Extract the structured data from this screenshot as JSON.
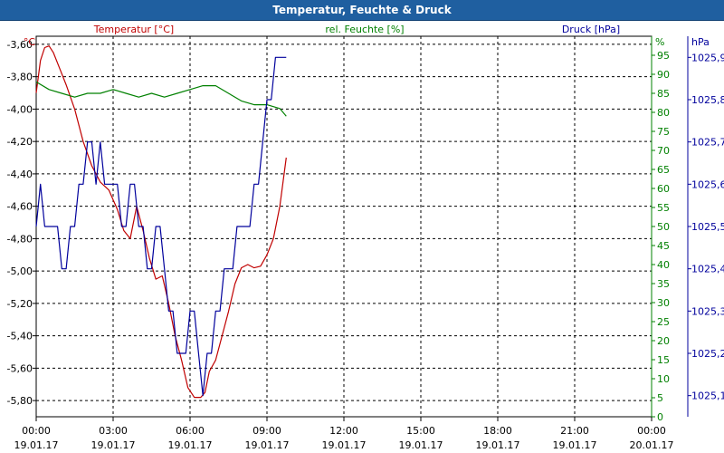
{
  "window": {
    "title": "Temperatur, Feuchte & Druck"
  },
  "colors": {
    "title_bar": "#1f5fa0",
    "temperature": "#c00000",
    "humidity": "#008000",
    "pressure": "#00009c",
    "grid": "#000000"
  },
  "chart_data": {
    "type": "line",
    "title": "Temperatur, Feuchte & Druck",
    "grid": true,
    "x_axis": {
      "range": [
        "19.01.17 00:00",
        "20.01.17 00:00"
      ],
      "ticks": [
        {
          "time": "00:00",
          "date": "19.01.17"
        },
        {
          "time": "03:00",
          "date": "19.01.17"
        },
        {
          "time": "06:00",
          "date": "19.01.17"
        },
        {
          "time": "09:00",
          "date": "19.01.17"
        },
        {
          "time": "12:00",
          "date": "19.01.17"
        },
        {
          "time": "15:00",
          "date": "19.01.17"
        },
        {
          "time": "18:00",
          "date": "19.01.17"
        },
        {
          "time": "21:00",
          "date": "19.01.17"
        },
        {
          "time": "00:00",
          "date": "20.01.17"
        }
      ]
    },
    "axes": [
      {
        "id": "temp",
        "side": "left",
        "title": "Temperatur [°C]",
        "unit": "°C",
        "range": [
          -5.9,
          -3.55
        ],
        "ticks": [
          "-3,60",
          "-3,80",
          "-4,00",
          "-4,20",
          "-4,40",
          "-4,60",
          "-4,80",
          "-5,00",
          "-5,20",
          "-5,40",
          "-5,60",
          "-5,80"
        ],
        "tick_values": [
          -3.6,
          -3.8,
          -4.0,
          -4.2,
          -4.4,
          -4.6,
          -4.8,
          -5.0,
          -5.2,
          -5.4,
          -5.6,
          -5.8
        ]
      },
      {
        "id": "hum",
        "side": "right",
        "title": "rel. Feuchte [%]",
        "unit": "%",
        "range": [
          0,
          100
        ],
        "ticks": [
          "95",
          "90",
          "85",
          "80",
          "75",
          "70",
          "65",
          "60",
          "55",
          "50",
          "45",
          "40",
          "35",
          "30",
          "25",
          "20",
          "15",
          "10",
          "5",
          "0"
        ],
        "tick_values": [
          95,
          90,
          85,
          80,
          75,
          70,
          65,
          60,
          55,
          50,
          45,
          40,
          35,
          30,
          25,
          20,
          15,
          10,
          5,
          0
        ]
      },
      {
        "id": "press",
        "side": "right",
        "title": "Druck [hPa]",
        "unit": "hPa",
        "range": [
          1025.05,
          1025.95
        ],
        "ticks": [
          "1025,9",
          "1025,8",
          "1025,7",
          "1025,6",
          "1025,5",
          "1025,4",
          "1025,3",
          "1025,2",
          "1025,1"
        ],
        "tick_values": [
          1025.9,
          1025.8,
          1025.7,
          1025.6,
          1025.5,
          1025.4,
          1025.3,
          1025.2,
          1025.1
        ]
      }
    ],
    "series": [
      {
        "name": "Temperatur",
        "axis": "temp",
        "color": "#c00000",
        "x": [
          "00:00",
          "00:10",
          "00:20",
          "00:30",
          "00:40",
          "00:55",
          "01:10",
          "01:30",
          "01:50",
          "02:10",
          "02:30",
          "02:50",
          "03:10",
          "03:25",
          "03:40",
          "03:55",
          "04:10",
          "04:25",
          "04:40",
          "04:55",
          "05:10",
          "05:25",
          "05:40",
          "05:55",
          "06:10",
          "06:25",
          "06:35",
          "06:45",
          "07:00",
          "07:15",
          "07:30",
          "07:45",
          "08:00",
          "08:15",
          "08:30",
          "08:45",
          "09:00",
          "09:15",
          "09:30",
          "09:45"
        ],
        "y": [
          -3.9,
          -3.7,
          -3.62,
          -3.61,
          -3.65,
          -3.75,
          -3.85,
          -4.0,
          -4.2,
          -4.35,
          -4.45,
          -4.5,
          -4.62,
          -4.75,
          -4.8,
          -4.6,
          -4.75,
          -4.92,
          -5.05,
          -5.03,
          -5.2,
          -5.4,
          -5.55,
          -5.72,
          -5.78,
          -5.78,
          -5.75,
          -5.62,
          -5.55,
          -5.4,
          -5.25,
          -5.08,
          -4.98,
          -4.96,
          -4.98,
          -4.97,
          -4.9,
          -4.8,
          -4.6,
          -4.3
        ]
      },
      {
        "name": "rel. Feuchte",
        "axis": "hum",
        "color": "#008000",
        "x": [
          "00:00",
          "00:30",
          "01:00",
          "01:30",
          "02:00",
          "02:30",
          "03:00",
          "03:30",
          "04:00",
          "04:30",
          "05:00",
          "05:30",
          "06:00",
          "06:30",
          "07:00",
          "07:30",
          "08:00",
          "08:30",
          "09:00",
          "09:30",
          "09:45"
        ],
        "y": [
          88,
          86,
          85,
          84,
          85,
          85,
          86,
          85,
          84,
          85,
          84,
          85,
          86,
          87,
          87,
          85,
          83,
          82,
          82,
          81,
          79
        ]
      },
      {
        "name": "Druck",
        "axis": "press",
        "color": "#00009c",
        "x": [
          "00:00",
          "00:10",
          "00:20",
          "00:30",
          "00:40",
          "00:50",
          "01:00",
          "01:10",
          "01:20",
          "01:30",
          "01:40",
          "01:50",
          "02:00",
          "02:10",
          "02:20",
          "02:30",
          "02:40",
          "02:50",
          "03:00",
          "03:10",
          "03:20",
          "03:30",
          "03:40",
          "03:50",
          "04:00",
          "04:10",
          "04:20",
          "04:30",
          "04:40",
          "04:50",
          "05:00",
          "05:10",
          "05:20",
          "05:30",
          "05:40",
          "05:50",
          "06:00",
          "06:10",
          "06:20",
          "06:30",
          "06:40",
          "06:50",
          "07:00",
          "07:10",
          "07:20",
          "07:30",
          "07:40",
          "07:50",
          "08:00",
          "08:10",
          "08:20",
          "08:30",
          "08:40",
          "08:50",
          "09:00",
          "09:10",
          "09:20",
          "09:30",
          "09:45"
        ],
        "y": [
          1025.5,
          1025.6,
          1025.5,
          1025.5,
          1025.5,
          1025.5,
          1025.4,
          1025.4,
          1025.5,
          1025.5,
          1025.6,
          1025.6,
          1025.7,
          1025.7,
          1025.6,
          1025.7,
          1025.6,
          1025.6,
          1025.6,
          1025.6,
          1025.5,
          1025.5,
          1025.6,
          1025.6,
          1025.5,
          1025.5,
          1025.4,
          1025.4,
          1025.5,
          1025.5,
          1025.4,
          1025.3,
          1025.3,
          1025.2,
          1025.2,
          1025.2,
          1025.3,
          1025.3,
          1025.2,
          1025.1,
          1025.2,
          1025.2,
          1025.3,
          1025.3,
          1025.4,
          1025.4,
          1025.4,
          1025.5,
          1025.5,
          1025.5,
          1025.5,
          1025.6,
          1025.6,
          1025.7,
          1025.8,
          1025.8,
          1025.9,
          1025.9,
          1025.9
        ]
      }
    ]
  }
}
